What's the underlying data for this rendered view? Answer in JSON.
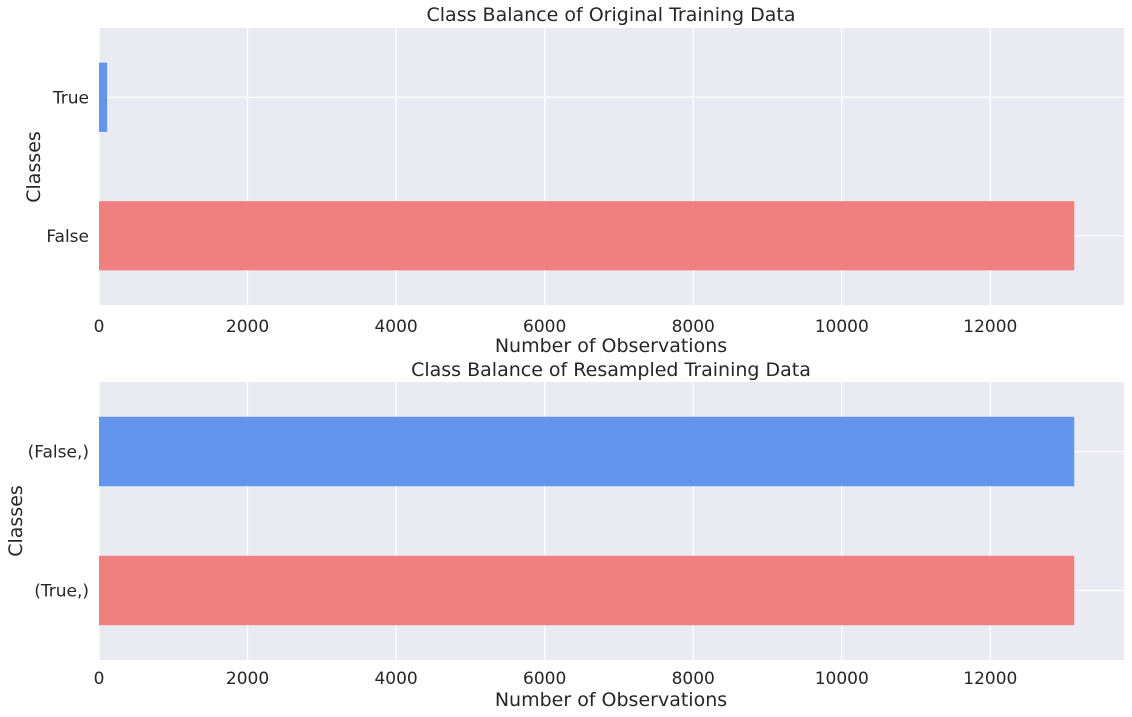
{
  "chart_data": [
    {
      "type": "bar",
      "orientation": "horizontal",
      "title": "Class Balance of Original Training Data",
      "xlabel": "Number of Observations",
      "ylabel": "Classes",
      "categories": [
        "True",
        "False"
      ],
      "values": [
        110,
        13130
      ],
      "bar_colors": [
        "#6495ed",
        "#f08080"
      ],
      "xlim": [
        0,
        13800
      ],
      "xticks": [
        0,
        2000,
        4000,
        6000,
        8000,
        10000,
        12000
      ],
      "xtick_labels": [
        "0",
        "2000",
        "4000",
        "6000",
        "8000",
        "10000",
        "12000"
      ],
      "grid": true,
      "background": "#eaeaf2",
      "grid_color": "#ffffff"
    },
    {
      "type": "bar",
      "orientation": "horizontal",
      "title": "Class Balance of Resampled Training Data",
      "xlabel": "Number of Observations",
      "ylabel": "Classes",
      "categories": [
        "(False,)",
        "(True,)"
      ],
      "values": [
        13130,
        13130
      ],
      "bar_colors": [
        "#6495ed",
        "#f08080"
      ],
      "xlim": [
        0,
        13800
      ],
      "xticks": [
        0,
        2000,
        4000,
        6000,
        8000,
        10000,
        12000
      ],
      "xtick_labels": [
        "0",
        "2000",
        "4000",
        "6000",
        "8000",
        "10000",
        "12000"
      ],
      "grid": true,
      "background": "#eaeaf2",
      "grid_color": "#ffffff"
    }
  ]
}
